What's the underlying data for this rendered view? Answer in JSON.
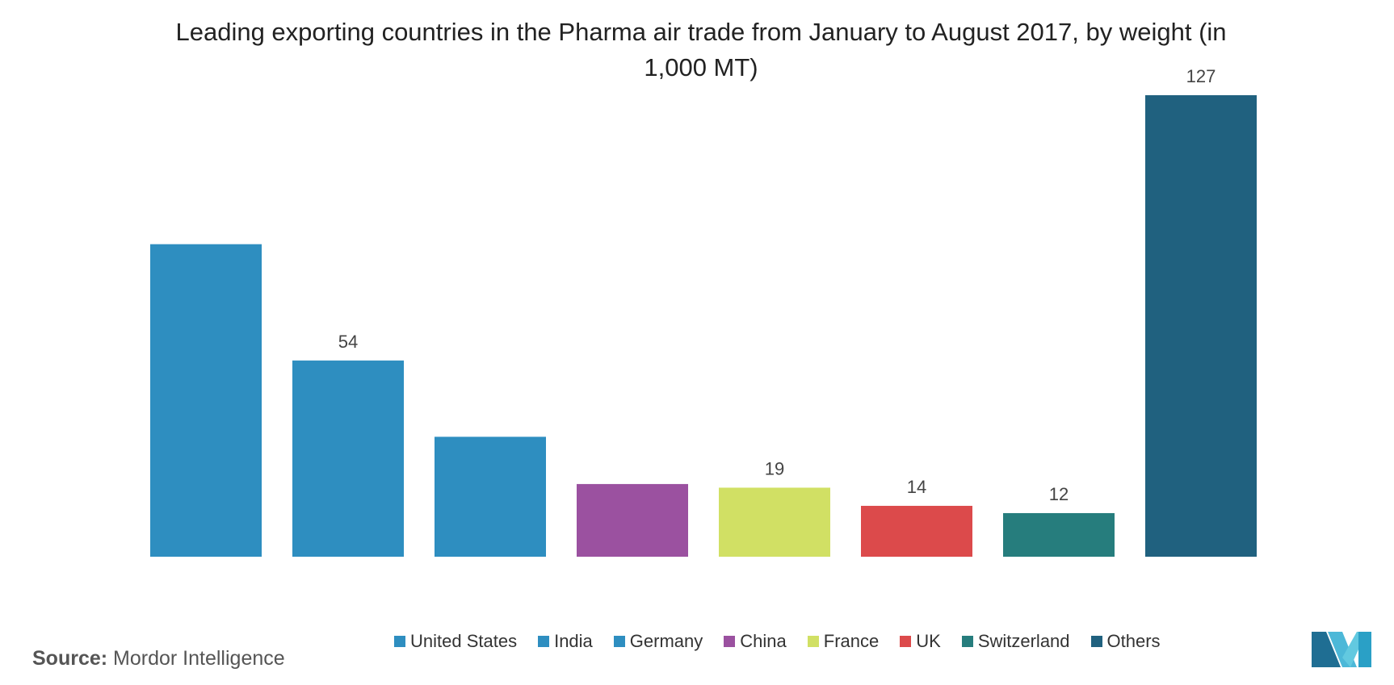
{
  "chart_data": {
    "type": "bar",
    "title": "Leading exporting countries in the Pharma air trade from January to August 2017, by weight (in 1,000 MT)",
    "categories": [
      "United States",
      "India",
      "Germany",
      "China",
      "France",
      "UK",
      "Switzerland",
      "Others"
    ],
    "values": [
      86,
      54,
      33,
      20,
      19,
      14,
      12,
      127
    ],
    "value_labels": [
      null,
      "54",
      null,
      null,
      "19",
      "14",
      "12",
      "127"
    ],
    "colors": [
      "#2e8ec0",
      "#2e8ec0",
      "#2e8ec0",
      "#9b51a0",
      "#d1e064",
      "#dc4a4b",
      "#267d7d",
      "#20617f"
    ],
    "ylim": [
      0,
      127
    ],
    "source_label": "Source:",
    "source": "Mordor Intelligence"
  }
}
